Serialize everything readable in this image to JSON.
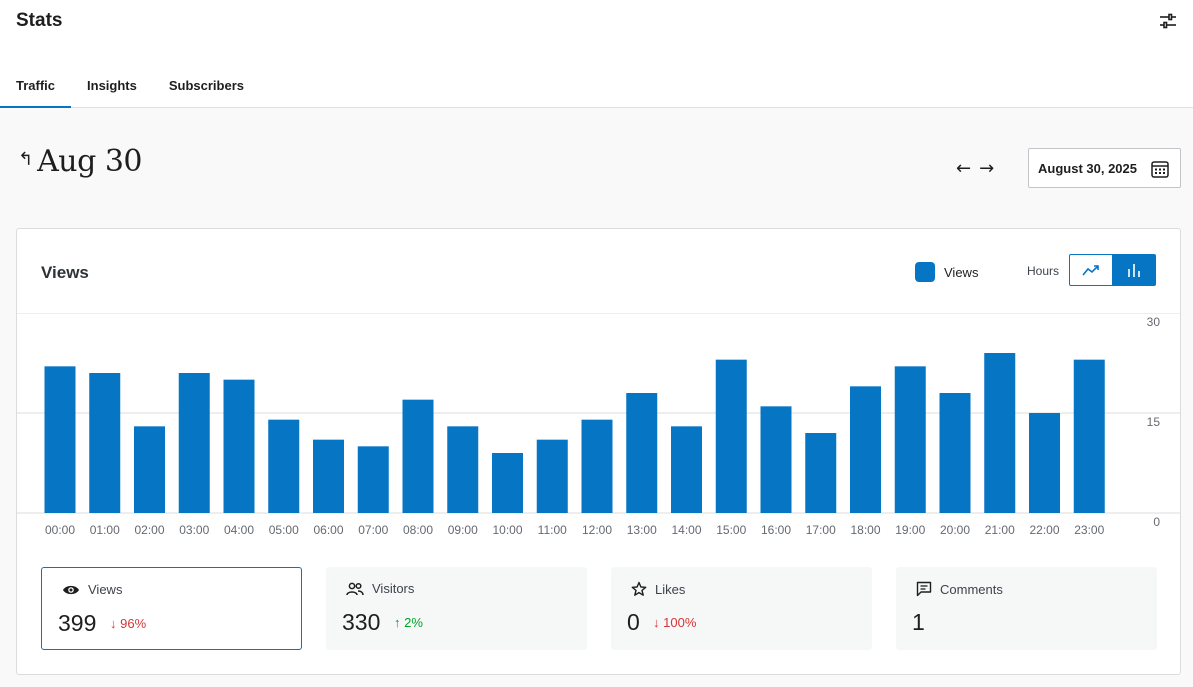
{
  "header": {
    "title": "Stats",
    "tabs": [
      {
        "label": "Traffic",
        "active": true
      },
      {
        "label": "Insights",
        "active": false
      },
      {
        "label": "Subscribers",
        "active": false
      }
    ]
  },
  "date_nav": {
    "title": "Aug 30",
    "back_icon": "back-up-arrow",
    "prev_icon": "arrow-left",
    "next_icon": "arrow-right",
    "date_picker_value": "August 30, 2025",
    "calendar_icon": "calendar-icon"
  },
  "card": {
    "title": "Views",
    "legend_label": "Views",
    "period_label": "Hours",
    "chart_modes": [
      "line",
      "bar"
    ],
    "active_mode": "bar"
  },
  "colors": {
    "accent": "#0675c4",
    "delta_down": "#d63638",
    "delta_up": "#00a32a"
  },
  "chart_data": {
    "type": "bar",
    "categories": [
      "00:00",
      "01:00",
      "02:00",
      "03:00",
      "04:00",
      "05:00",
      "06:00",
      "07:00",
      "08:00",
      "09:00",
      "10:00",
      "11:00",
      "12:00",
      "13:00",
      "14:00",
      "15:00",
      "16:00",
      "17:00",
      "18:00",
      "19:00",
      "20:00",
      "21:00",
      "22:00",
      "23:00"
    ],
    "series": [
      {
        "name": "Views",
        "values": [
          22,
          21,
          13,
          21,
          20,
          14,
          11,
          10,
          17,
          13,
          9,
          11,
          14,
          18,
          13,
          23,
          16,
          12,
          19,
          22,
          18,
          24,
          15,
          23
        ]
      }
    ],
    "y_ticks": [
      "0",
      "15",
      "30"
    ],
    "ylim": [
      0,
      30
    ],
    "grid": true,
    "legend": "top-right"
  },
  "stats": [
    {
      "label": "Views",
      "value": "399",
      "delta": "96%",
      "direction": "down",
      "icon": "eye-icon",
      "selected": true
    },
    {
      "label": "Visitors",
      "value": "330",
      "delta": "2%",
      "direction": "up",
      "icon": "people-icon",
      "selected": false
    },
    {
      "label": "Likes",
      "value": "0",
      "delta": "100%",
      "direction": "down",
      "icon": "star-icon",
      "selected": false
    },
    {
      "label": "Comments",
      "value": "1",
      "delta": "",
      "direction": "",
      "icon": "comment-icon",
      "selected": false
    }
  ]
}
